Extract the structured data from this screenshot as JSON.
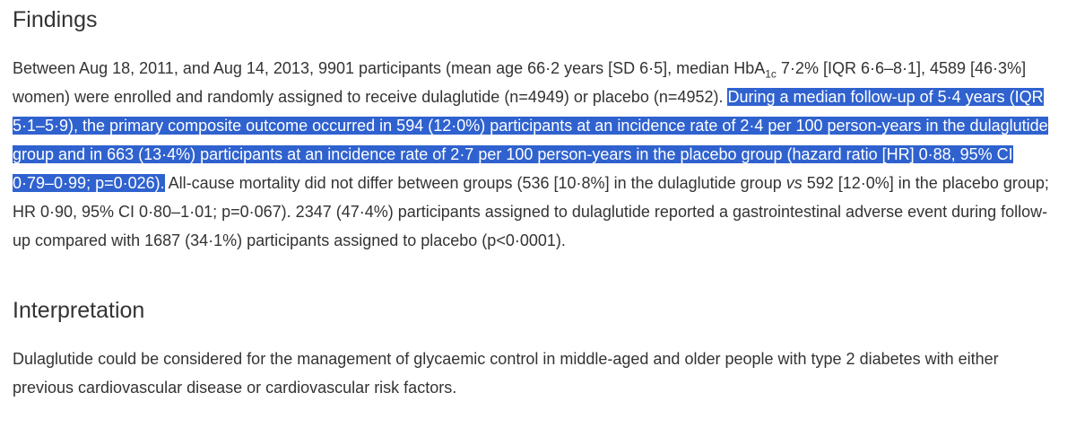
{
  "findings": {
    "heading": "Findings",
    "paragraph": [
      "Between Aug 18, 2011, and Aug 14, 2013, 9901 participants (mean age 66·2 years [SD 6·5], median HbA",
      "1c",
      " 7·2% [IQR 6·6–8·1], 4589 [46·3%] women) were enrolled and randomly assigned to receive dulaglutide (n=4949) or placebo (n=4952). ",
      "During a median follow-up of 5·4 years (IQR 5·1–5·9), the primary composite outcome occurred in 594 (12·0%) participants at an incidence rate of 2·4 per 100 person-years in the dulaglutide group and in 663 (13·4%) participants at an incidence rate of 2·7 per 100 person-years in the placebo group (hazard ratio [HR] 0·88, 95% CI 0·79–0·99; p=0·026).",
      " All-cause mortality did not differ between groups (536 [10·8%] in the dulaglutide group ",
      "vs",
      " 592 [12·0%] in the placebo group; HR 0·90, 95% CI 0·80–1·01; p=0·067). 2347 (47·4%) participants assigned to dulaglutide reported a gastrointestinal adverse event during follow-up compared with 1687 (34·1%) participants assigned to placebo (p<0·0001)."
    ]
  },
  "interpretation": {
    "heading": "Interpretation",
    "paragraph": "Dulaglutide could be considered for the management of glycaemic control in middle-aged and older people with type 2 diabetes with either previous cardiovascular disease or cardiovascular risk factors."
  }
}
